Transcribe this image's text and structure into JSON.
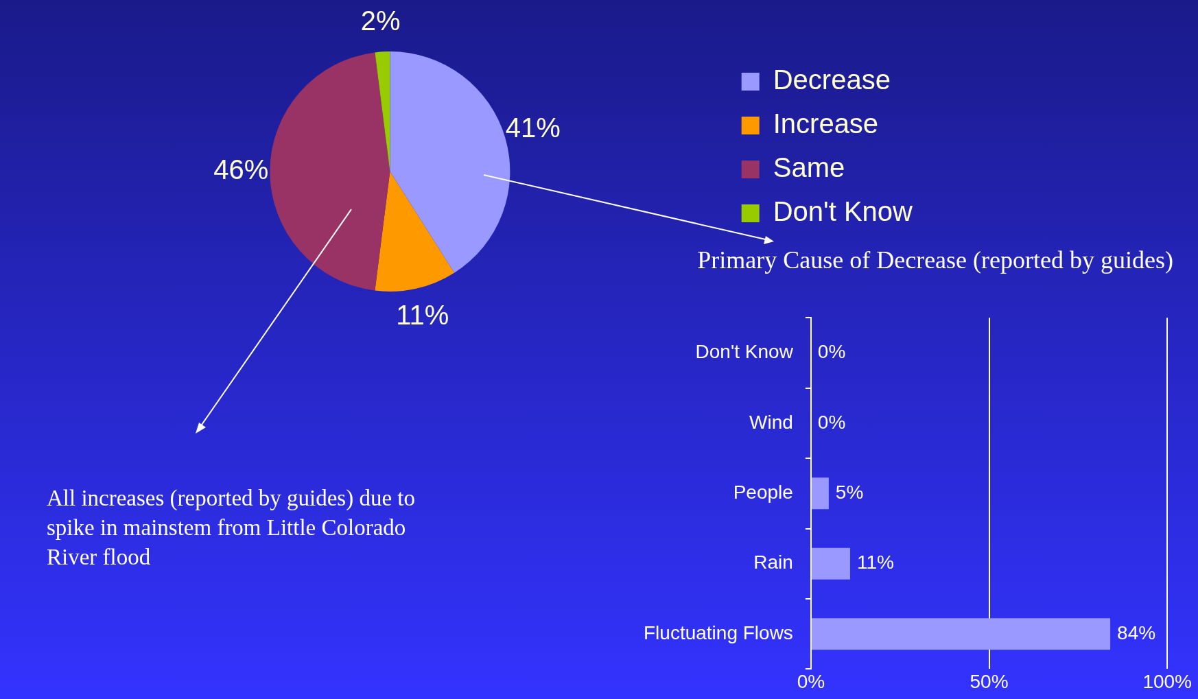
{
  "chart_data": [
    {
      "type": "pie",
      "categories": [
        "Decrease",
        "Increase",
        "Same",
        "Don't Know"
      ],
      "values": [
        41,
        11,
        46,
        2
      ],
      "colors": [
        "#9999ff",
        "#ff9900",
        "#993366",
        "#99cc00"
      ],
      "value_labels": [
        "41%",
        "11%",
        "46%",
        "2%"
      ],
      "legend": "top right",
      "annotations": [
        "All increases (reported by guides) due to spike in mainstem from Little Colorado River flood"
      ]
    },
    {
      "type": "bar",
      "orientation": "horizontal",
      "title": "Primary Cause of Decrease (reported by guides)",
      "categories": [
        "Don't Know",
        "Wind",
        "People",
        "Rain",
        "Fluctuating Flows"
      ],
      "values": [
        0,
        0,
        5,
        11,
        84
      ],
      "color": "#9999ff",
      "value_labels": [
        "0%",
        "0%",
        "5%",
        "11%",
        "84%"
      ],
      "xlim": [
        0,
        100
      ],
      "xticks": [
        {
          "value": 0,
          "label": "0%"
        },
        {
          "value": 50,
          "label": "50%"
        },
        {
          "value": 100,
          "label": "100%"
        }
      ],
      "grid": "x"
    }
  ]
}
